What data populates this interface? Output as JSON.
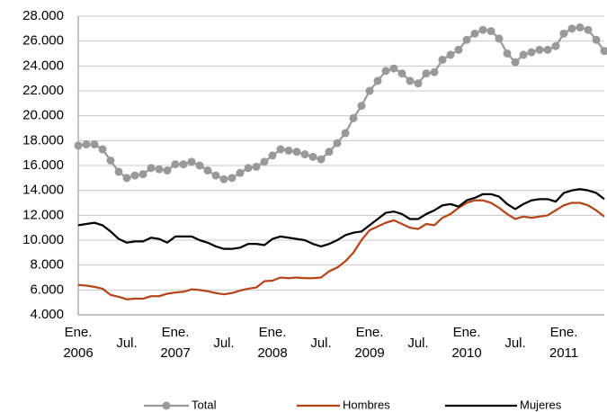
{
  "chart_data": {
    "type": "line",
    "categories": [
      "Ene.\n2006",
      null,
      null,
      null,
      null,
      null,
      "Jul.",
      null,
      null,
      null,
      null,
      null,
      "Ene.\n2007",
      null,
      null,
      null,
      null,
      null,
      "Jul.",
      null,
      null,
      null,
      null,
      null,
      "Ene.\n2008",
      null,
      null,
      null,
      null,
      null,
      "Jul.",
      null,
      null,
      null,
      null,
      null,
      "Ene.\n2009",
      null,
      null,
      null,
      null,
      null,
      "Jul.",
      null,
      null,
      null,
      null,
      null,
      "Ene.\n2010",
      null,
      null,
      null,
      null,
      null,
      "Jul.",
      null,
      null,
      null,
      null,
      null,
      "Ene.\n2011",
      null,
      null,
      null,
      null,
      null
    ],
    "series": [
      {
        "name": "Total",
        "color": "#999999",
        "marker": "circle",
        "values": [
          17600,
          17700,
          17700,
          17300,
          16400,
          15500,
          15000,
          15200,
          15300,
          15800,
          15700,
          15600,
          16100,
          16100,
          16300,
          16000,
          15600,
          15200,
          14900,
          15000,
          15400,
          15800,
          15900,
          16300,
          16800,
          17300,
          17200,
          17100,
          16900,
          16700,
          16500,
          17100,
          17800,
          18600,
          19800,
          20800,
          22000,
          22800,
          23600,
          23800,
          23400,
          22800,
          22600,
          23400,
          23500,
          24500,
          24900,
          25300,
          26100,
          26600,
          26900,
          26800,
          26200,
          25000,
          24300,
          24900,
          25100,
          25300,
          25300,
          25600,
          26600,
          27000,
          27100,
          26900,
          26100,
          25200
        ]
      },
      {
        "name": "Hombres",
        "color": "#b5451b",
        "values": [
          6400,
          6350,
          6250,
          6100,
          5600,
          5450,
          5250,
          5300,
          5300,
          5500,
          5500,
          5700,
          5800,
          5850,
          6050,
          6000,
          5900,
          5750,
          5650,
          5750,
          5950,
          6100,
          6200,
          6700,
          6750,
          7000,
          6950,
          7000,
          6950,
          6950,
          7000,
          7500,
          7800,
          8300,
          9000,
          10000,
          10800,
          11100,
          11400,
          11600,
          11300,
          11000,
          10900,
          11300,
          11200,
          11800,
          12100,
          12600,
          13000,
          13200,
          13200,
          13000,
          12600,
          12100,
          11700,
          11900,
          11800,
          11900,
          12000,
          12400,
          12800,
          13000,
          13000,
          12800,
          12400,
          11900
        ]
      },
      {
        "name": "Mujeres",
        "color": "#000000",
        "values": [
          11200,
          11300,
          11400,
          11200,
          10700,
          10100,
          9800,
          9900,
          9900,
          10200,
          10100,
          9800,
          10300,
          10300,
          10300,
          10000,
          9800,
          9500,
          9300,
          9300,
          9400,
          9700,
          9700,
          9600,
          10100,
          10300,
          10200,
          10100,
          10000,
          9700,
          9500,
          9700,
          10000,
          10400,
          10600,
          10700,
          11200,
          11700,
          12200,
          12300,
          12100,
          11700,
          11700,
          12100,
          12400,
          12800,
          12900,
          12700,
          13200,
          13400,
          13700,
          13700,
          13500,
          12900,
          12500,
          12900,
          13200,
          13300,
          13300,
          13100,
          13800,
          14000,
          14100,
          14000,
          13800,
          13300
        ]
      }
    ],
    "ylim": [
      4000,
      28000
    ],
    "yticks": [
      {
        "value": 4000,
        "label": "4.000"
      },
      {
        "value": 6000,
        "label": "6.000"
      },
      {
        "value": 8000,
        "label": "8.000"
      },
      {
        "value": 10000,
        "label": "10.000"
      },
      {
        "value": 12000,
        "label": "12.000"
      },
      {
        "value": 14000,
        "label": "14.000"
      },
      {
        "value": 16000,
        "label": "16.000"
      },
      {
        "value": 18000,
        "label": "18.000"
      },
      {
        "value": 20000,
        "label": "20.000"
      },
      {
        "value": 22000,
        "label": "22.000"
      },
      {
        "value": 24000,
        "label": "24.000"
      },
      {
        "value": 26000,
        "label": "26.000"
      },
      {
        "value": 28000,
        "label": "28.000"
      }
    ],
    "grid": true,
    "legend": "bottom"
  }
}
